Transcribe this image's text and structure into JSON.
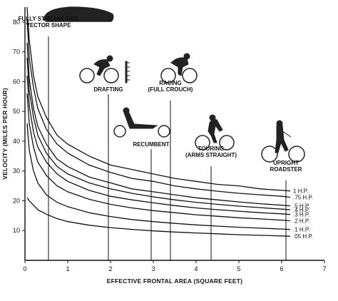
{
  "chart_data": {
    "type": "line",
    "title": "",
    "xlabel": "EFFECTIVE FRONTAL AREA (SQUARE FEET)",
    "ylabel": "VELOCITY (MILES PER HOUR)",
    "xlim": [
      0,
      7
    ],
    "ylim": [
      0,
      85
    ],
    "x_ticks": [
      "0",
      "1",
      "2",
      "3",
      "4",
      "5",
      "6",
      "7"
    ],
    "y_ticks": [
      "10",
      "20",
      "30",
      "40",
      "50",
      "60",
      "70",
      "80"
    ],
    "grid": false,
    "legend": "none",
    "x": [
      0.05,
      0.1,
      0.2,
      0.3,
      0.5,
      0.75,
      1,
      1.5,
      2,
      2.5,
      3,
      3.5,
      4,
      4.5,
      5,
      5.5,
      6,
      6.2
    ],
    "series": [
      {
        "name": "1 H.P.",
        "values": [
          86,
          74,
          62,
          55,
          48,
          42,
          39,
          35,
          32,
          30.5,
          29,
          27.5,
          26.5,
          25.5,
          25,
          24,
          23.5,
          23.3
        ]
      },
      {
        "name": ".75 H.P.",
        "values": [
          81,
          68,
          58,
          51,
          44,
          39,
          36,
          32,
          29.5,
          27.5,
          26.5,
          25,
          24,
          23.2,
          22.5,
          22,
          21.5,
          21.2
        ]
      },
      {
        "name": ".5 H.P.",
        "values": [
          73,
          61,
          51,
          45,
          39,
          34,
          31.5,
          28,
          26,
          24,
          23,
          22,
          21,
          20.3,
          19.6,
          19,
          18.5,
          18.3
        ]
      },
      {
        "name": ".4 H.P.",
        "values": [
          68,
          57,
          48,
          42,
          36,
          31.5,
          29,
          26,
          24,
          22.5,
          21.3,
          20.3,
          19.5,
          18.8,
          18.2,
          17.7,
          17.2,
          17
        ]
      },
      {
        "name": ".3 H.P.",
        "values": [
          62,
          52,
          43,
          38,
          33,
          29,
          26.5,
          23.5,
          21.5,
          20.3,
          19.3,
          18.4,
          17.6,
          17,
          16.5,
          16,
          15.6,
          15.4
        ]
      },
      {
        "name": ".2 H.P.",
        "values": [
          56,
          46,
          38,
          33,
          28.5,
          25,
          23,
          20.5,
          18.8,
          17.6,
          16.7,
          16,
          15.3,
          14.8,
          14.3,
          13.9,
          13.5,
          13.3
        ]
      },
      {
        "name": ".1 H.P.",
        "values": [
          46,
          37,
          30,
          26,
          22,
          19.5,
          18,
          16,
          14.7,
          13.7,
          13,
          12.4,
          11.9,
          11.5,
          11.1,
          10.8,
          10.5,
          10.4
        ]
      },
      {
        "name": ".05 H.P.",
        "values": [
          21,
          20,
          18.5,
          17,
          15.5,
          14,
          13,
          11.8,
          11,
          10.4,
          9.9,
          9.5,
          9.2,
          8.9,
          8.6,
          8.4,
          8.2,
          8.1
        ]
      }
    ],
    "annotations": [
      {
        "lines": [
          "FULLY STREAMLINED",
          "VECTOR SHAPE"
        ],
        "x": 0.55
      },
      {
        "lines": [
          "DRAFTING"
        ],
        "x": 1.95
      },
      {
        "lines": [
          "RACING",
          "(FULL CROUCH)"
        ],
        "x": 3.4
      },
      {
        "lines": [
          "RECUMBENT"
        ],
        "x": 2.95
      },
      {
        "lines": [
          "TOURING",
          "(ARMS STRAIGHT)"
        ],
        "x": 4.35
      },
      {
        "lines": [
          "UPRIGHT",
          "ROADSTER"
        ],
        "x": 6.1
      }
    ]
  }
}
